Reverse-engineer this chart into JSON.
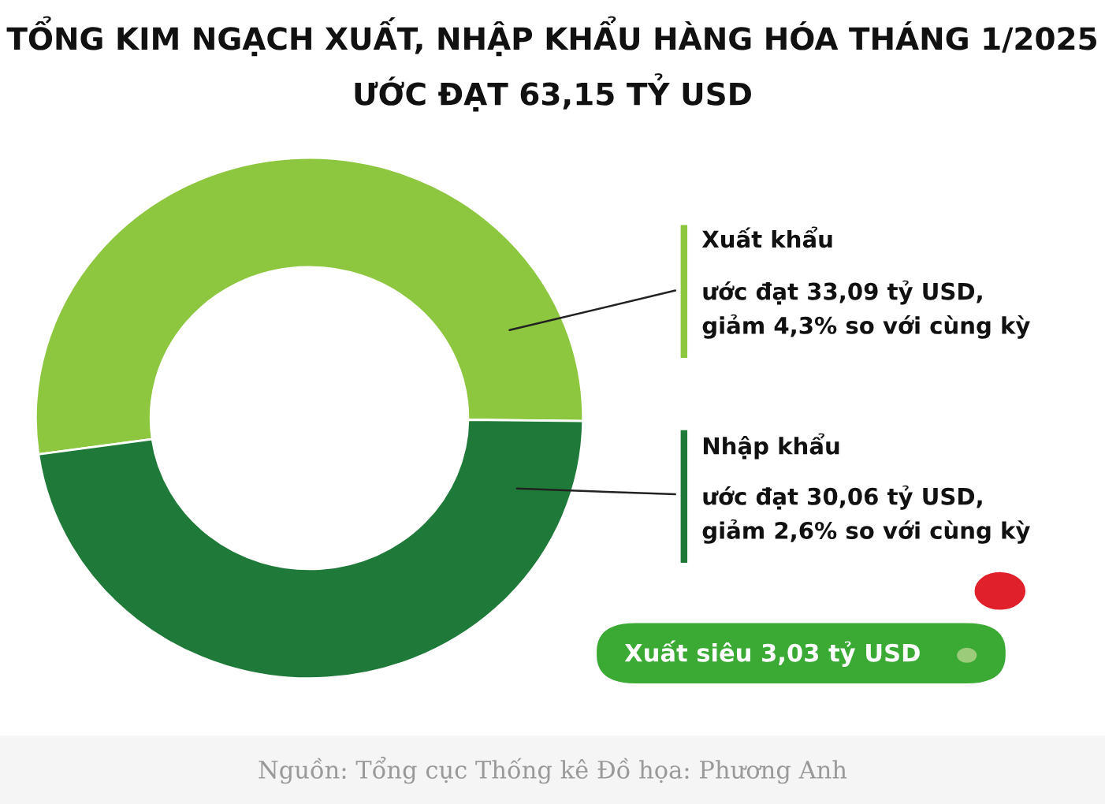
{
  "chart_data": {
    "type": "donut",
    "title": "TỔNG KIM NGẠCH XUẤT, NHẬP KHẨU HÀNG HÓA THÁNG 1/2025",
    "subtitle": "ƯỚC ĐẠT 63,15 TỶ USD",
    "categories": [
      "Xuất khẩu",
      "Nhập khẩu"
    ],
    "values": [
      33.09,
      30.06
    ],
    "colors": [
      "#8dc63f",
      "#1f7a3a"
    ],
    "value_labels": [
      "ước đạt 33,09 tỷ USD,\ngiảm 4,3% so với cùng kỳ",
      "ước đạt 30,06 tỷ USD,\ngiảm 2,6% so với cùng kỳ"
    ],
    "annotations": [
      "Xuất siêu 3,03 tỷ USD",
      "Nguồn: Tổng cục Thống kê Đồ họa: Phương Anh"
    ],
    "legend": false
  }
}
